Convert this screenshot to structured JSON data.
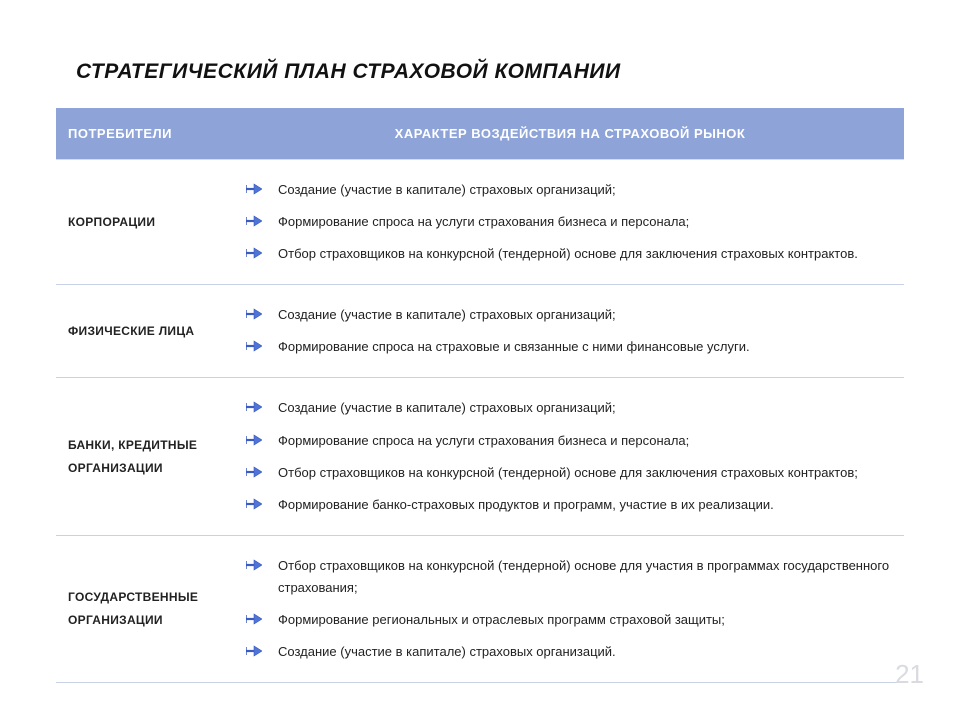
{
  "title": "СТРАТЕГИЧЕСКИЙ ПЛАН СТРАХОВОЙ КОМПАНИИ",
  "page_number": "21",
  "colors": {
    "header_bg": "#8ea3d8",
    "header_text": "#ffffff",
    "row_border": "#c9d1e6",
    "body_text": "#222222",
    "page_number": "#d9dbe0",
    "arrow_stroke": "#3a5bbf",
    "arrow_fill": "#4f74d6"
  },
  "table": {
    "columns": [
      "ПОТРЕБИТЕЛИ",
      "ХАРАКТЕР ВОЗДЕЙСТВИЯ НА СТРАХОВОЙ РЫНОК"
    ],
    "rows": [
      {
        "label": "КОРПОРАЦИИ",
        "items": [
          "Создание (участие в капитале) страховых организаций;",
          "Формирование спроса на услуги страхования бизнеса и персонала;",
          "Отбор страховщиков на конкурсной (тендерной) основе для заключения страховых контрактов."
        ]
      },
      {
        "label": "ФИЗИЧЕСКИЕ ЛИЦА",
        "items": [
          "Создание (участие в капитале) страховых организаций;",
          "Формирование спроса на страховые и связанные с ними финансовые услуги."
        ]
      },
      {
        "label": "БАНКИ, КРЕДИТНЫЕ ОРГАНИЗАЦИИ",
        "items": [
          "Создание (участие в капитале) страховых организаций;",
          "Формирование спроса на услуги страхования бизнеса и персонала;",
          "Отбор страховщиков на конкурсной (тендерной) основе для заключения страховых контрактов;",
          "Формирование банко-страховых продуктов и программ, участие в их реализации."
        ]
      },
      {
        "label": "ГОСУДАРСТВЕННЫЕ ОРГАНИЗАЦИИ",
        "items": [
          "Отбор страховщиков на конкурсной (тендерной) основе для участия в программах государственного страхования;",
          "Формирование региональных и отраслевых программ страховой защиты;",
          "Создание (участие в капитале) страховых организаций."
        ]
      }
    ]
  }
}
